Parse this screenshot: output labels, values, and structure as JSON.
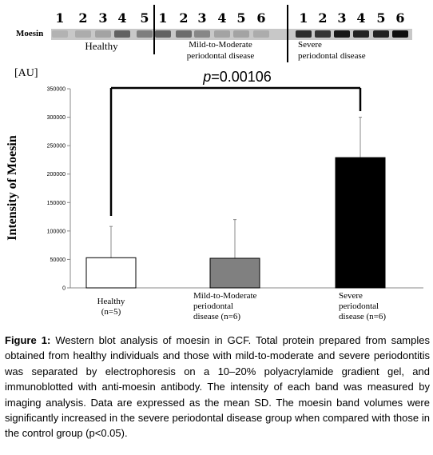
{
  "blot": {
    "label": "Moesin",
    "groups": [
      {
        "name_lines": [
          "Healthy"
        ],
        "lanes": [
          "1",
          "2",
          "3",
          "4",
          "5"
        ]
      },
      {
        "name_lines": [
          "Mild-to-Moderate",
          "periodontal  disease"
        ],
        "lanes": [
          "1",
          "2",
          "3",
          "4",
          "5",
          "6"
        ]
      },
      {
        "name_lines": [
          "Severe",
          "periodontal disease"
        ],
        "lanes": [
          "1",
          "2",
          "3",
          "4",
          "5",
          "6"
        ]
      }
    ]
  },
  "chart_data": {
    "type": "bar",
    "unit_label": "[AU]",
    "ylabel": "Intensity of Moesin",
    "ylim": [
      0,
      350000
    ],
    "yticks": [
      0,
      50000,
      100000,
      150000,
      200000,
      250000,
      300000,
      350000
    ],
    "grid": false,
    "categories": [
      {
        "lines": [
          "Healthy",
          "(n=5)"
        ],
        "value": 53000,
        "error": 55000,
        "color": "#ffffff"
      },
      {
        "lines": [
          "Mild-to-Moderate",
          "periodontal",
          "disease (n=6)"
        ],
        "value": 52000,
        "error": 68000,
        "color": "#808080"
      },
      {
        "lines": [
          "Severe",
          "periodontal",
          "disease  (n=6)"
        ],
        "value": 229000,
        "error": 71000,
        "color": "#000000"
      }
    ],
    "annotation": {
      "p_symbol": "p",
      "p_value": "=0.00106",
      "between": [
        0,
        2
      ]
    }
  },
  "caption": {
    "label": "Figure 1:",
    "text": " Western blot analysis of moesin in GCF. Total protein prepared from samples obtained from healthy individuals and those with mild-to-moderate and severe periodontitis was separated by electrophoresis on a 10–20% polyacrylamide gradient gel, and immunoblotted with anti-moesin antibody. The intensity of each band was measured by imaging analysis. Data are expressed as the mean  SD. The moesin band volumes were significantly increased in the severe periodontal disease group when compared with those in the control group (p<0.05)."
  }
}
